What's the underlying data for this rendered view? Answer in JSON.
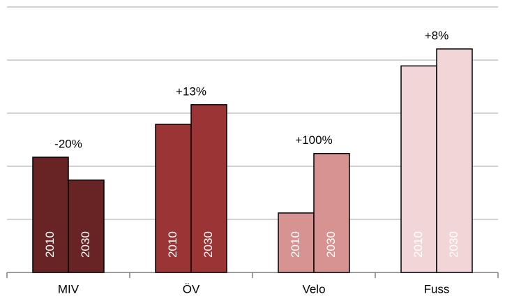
{
  "chart_data": {
    "type": "bar",
    "categories": [
      "MIV",
      "ÖV",
      "Velo",
      "Fuss"
    ],
    "colors": [
      "#682424",
      "#9b3535",
      "#d69391",
      "#f2d5d7"
    ],
    "series": [
      {
        "name": "2010",
        "values": [
          2.17,
          2.79,
          1.12,
          3.89
        ]
      },
      {
        "name": "2030",
        "values": [
          1.74,
          3.16,
          2.24,
          4.21
        ]
      }
    ],
    "annotations": [
      "-20%",
      "+13%",
      "+100%",
      "+8%"
    ],
    "ylim": [
      0,
      5
    ],
    "yticks": [
      0,
      1,
      2,
      3,
      4,
      5
    ],
    "grid": true
  }
}
